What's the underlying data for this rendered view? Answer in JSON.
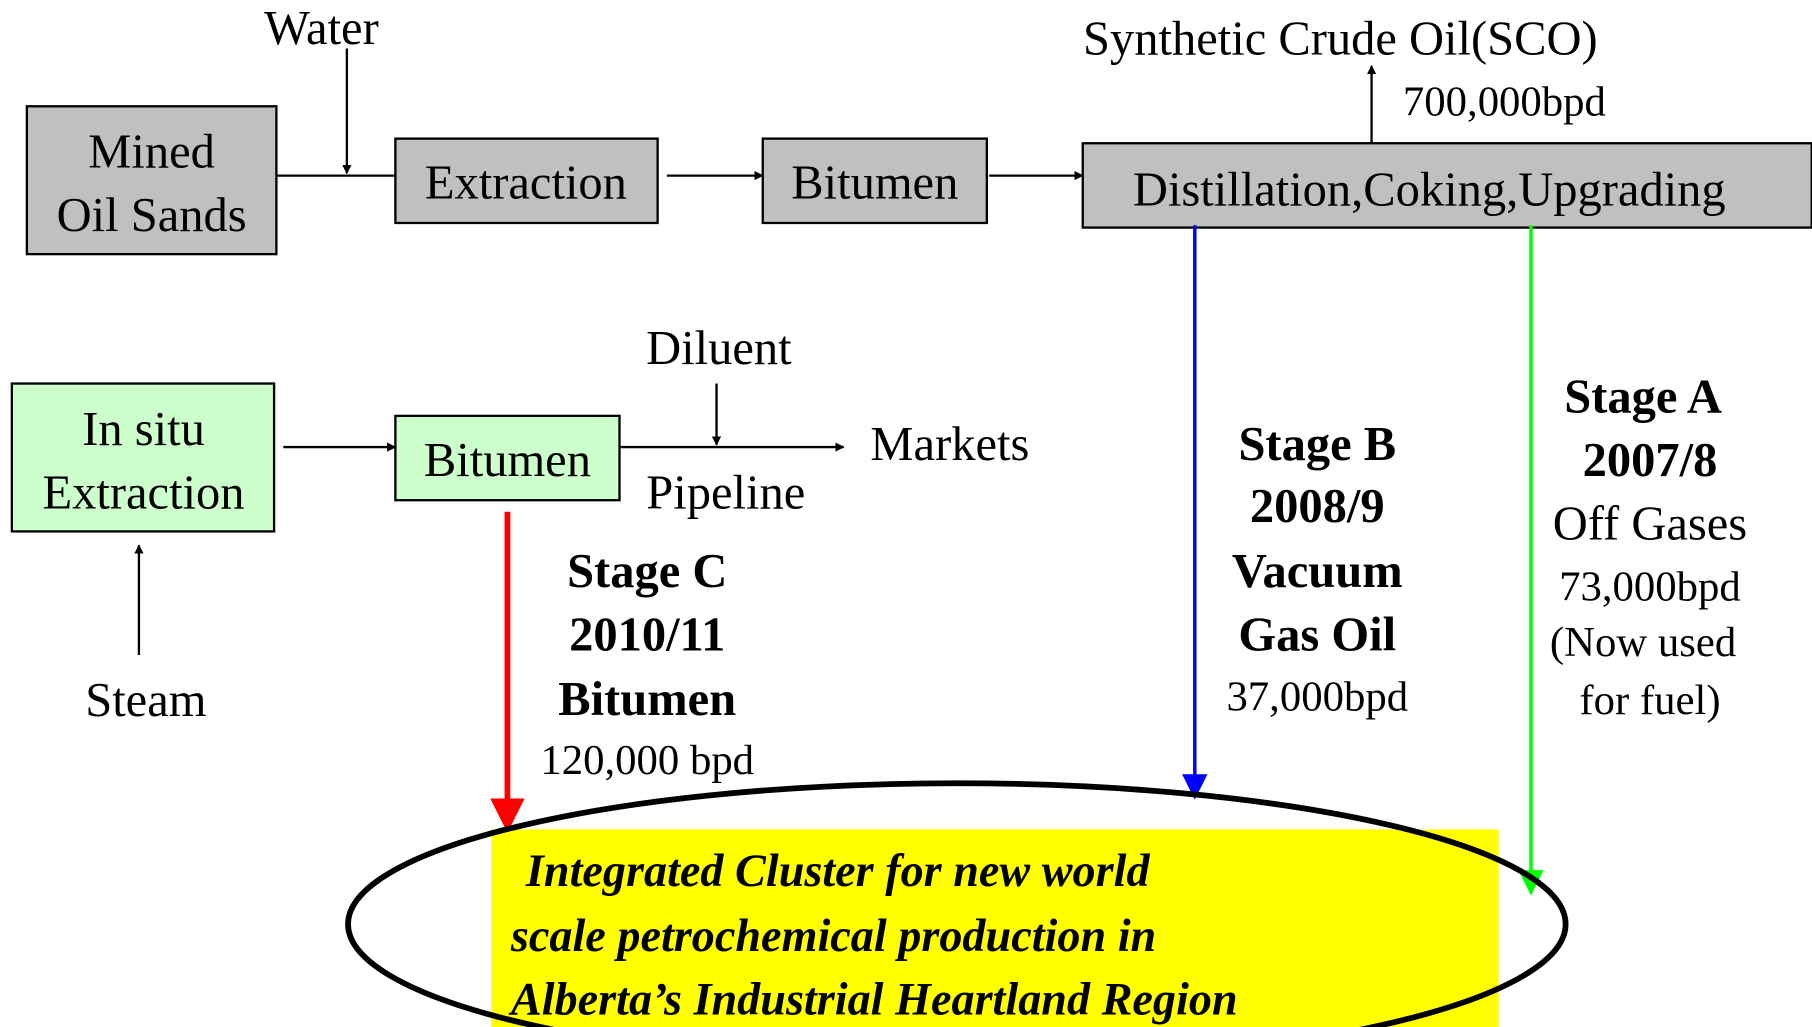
{
  "labels": {
    "water": "Water",
    "sco": "Synthetic Crude Oil(SCO)",
    "sco_rate": "700,000bpd",
    "diluent": "Diluent",
    "pipeline": "Pipeline",
    "markets": "Markets",
    "steam": "Steam"
  },
  "boxes": {
    "mined": [
      "Mined",
      "Oil Sands"
    ],
    "extraction": "Extraction",
    "bitumen_top": "Bitumen",
    "upgrading": "Distillation,Coking,Upgrading",
    "insitu": [
      "In situ",
      "Extraction"
    ],
    "bitumen_bottom": "Bitumen"
  },
  "stages": {
    "c": {
      "bold": [
        "Stage C",
        "2010/11",
        "Bitumen"
      ],
      "rate": "120,000 bpd"
    },
    "b": {
      "bold": [
        "Stage B",
        "2008/9",
        "Vacuum",
        "Gas Oil"
      ],
      "rate": "37,000bpd"
    },
    "a": {
      "bold": [
        "Stage A",
        "2007/8"
      ],
      "plain": [
        "Off Gases",
        "73,000bpd",
        "(Now used",
        "for fuel)"
      ]
    }
  },
  "cluster": [
    "Integrated Cluster for new world",
    "scale petrochemical production in",
    "Alberta’s Industrial Heartland Region"
  ]
}
